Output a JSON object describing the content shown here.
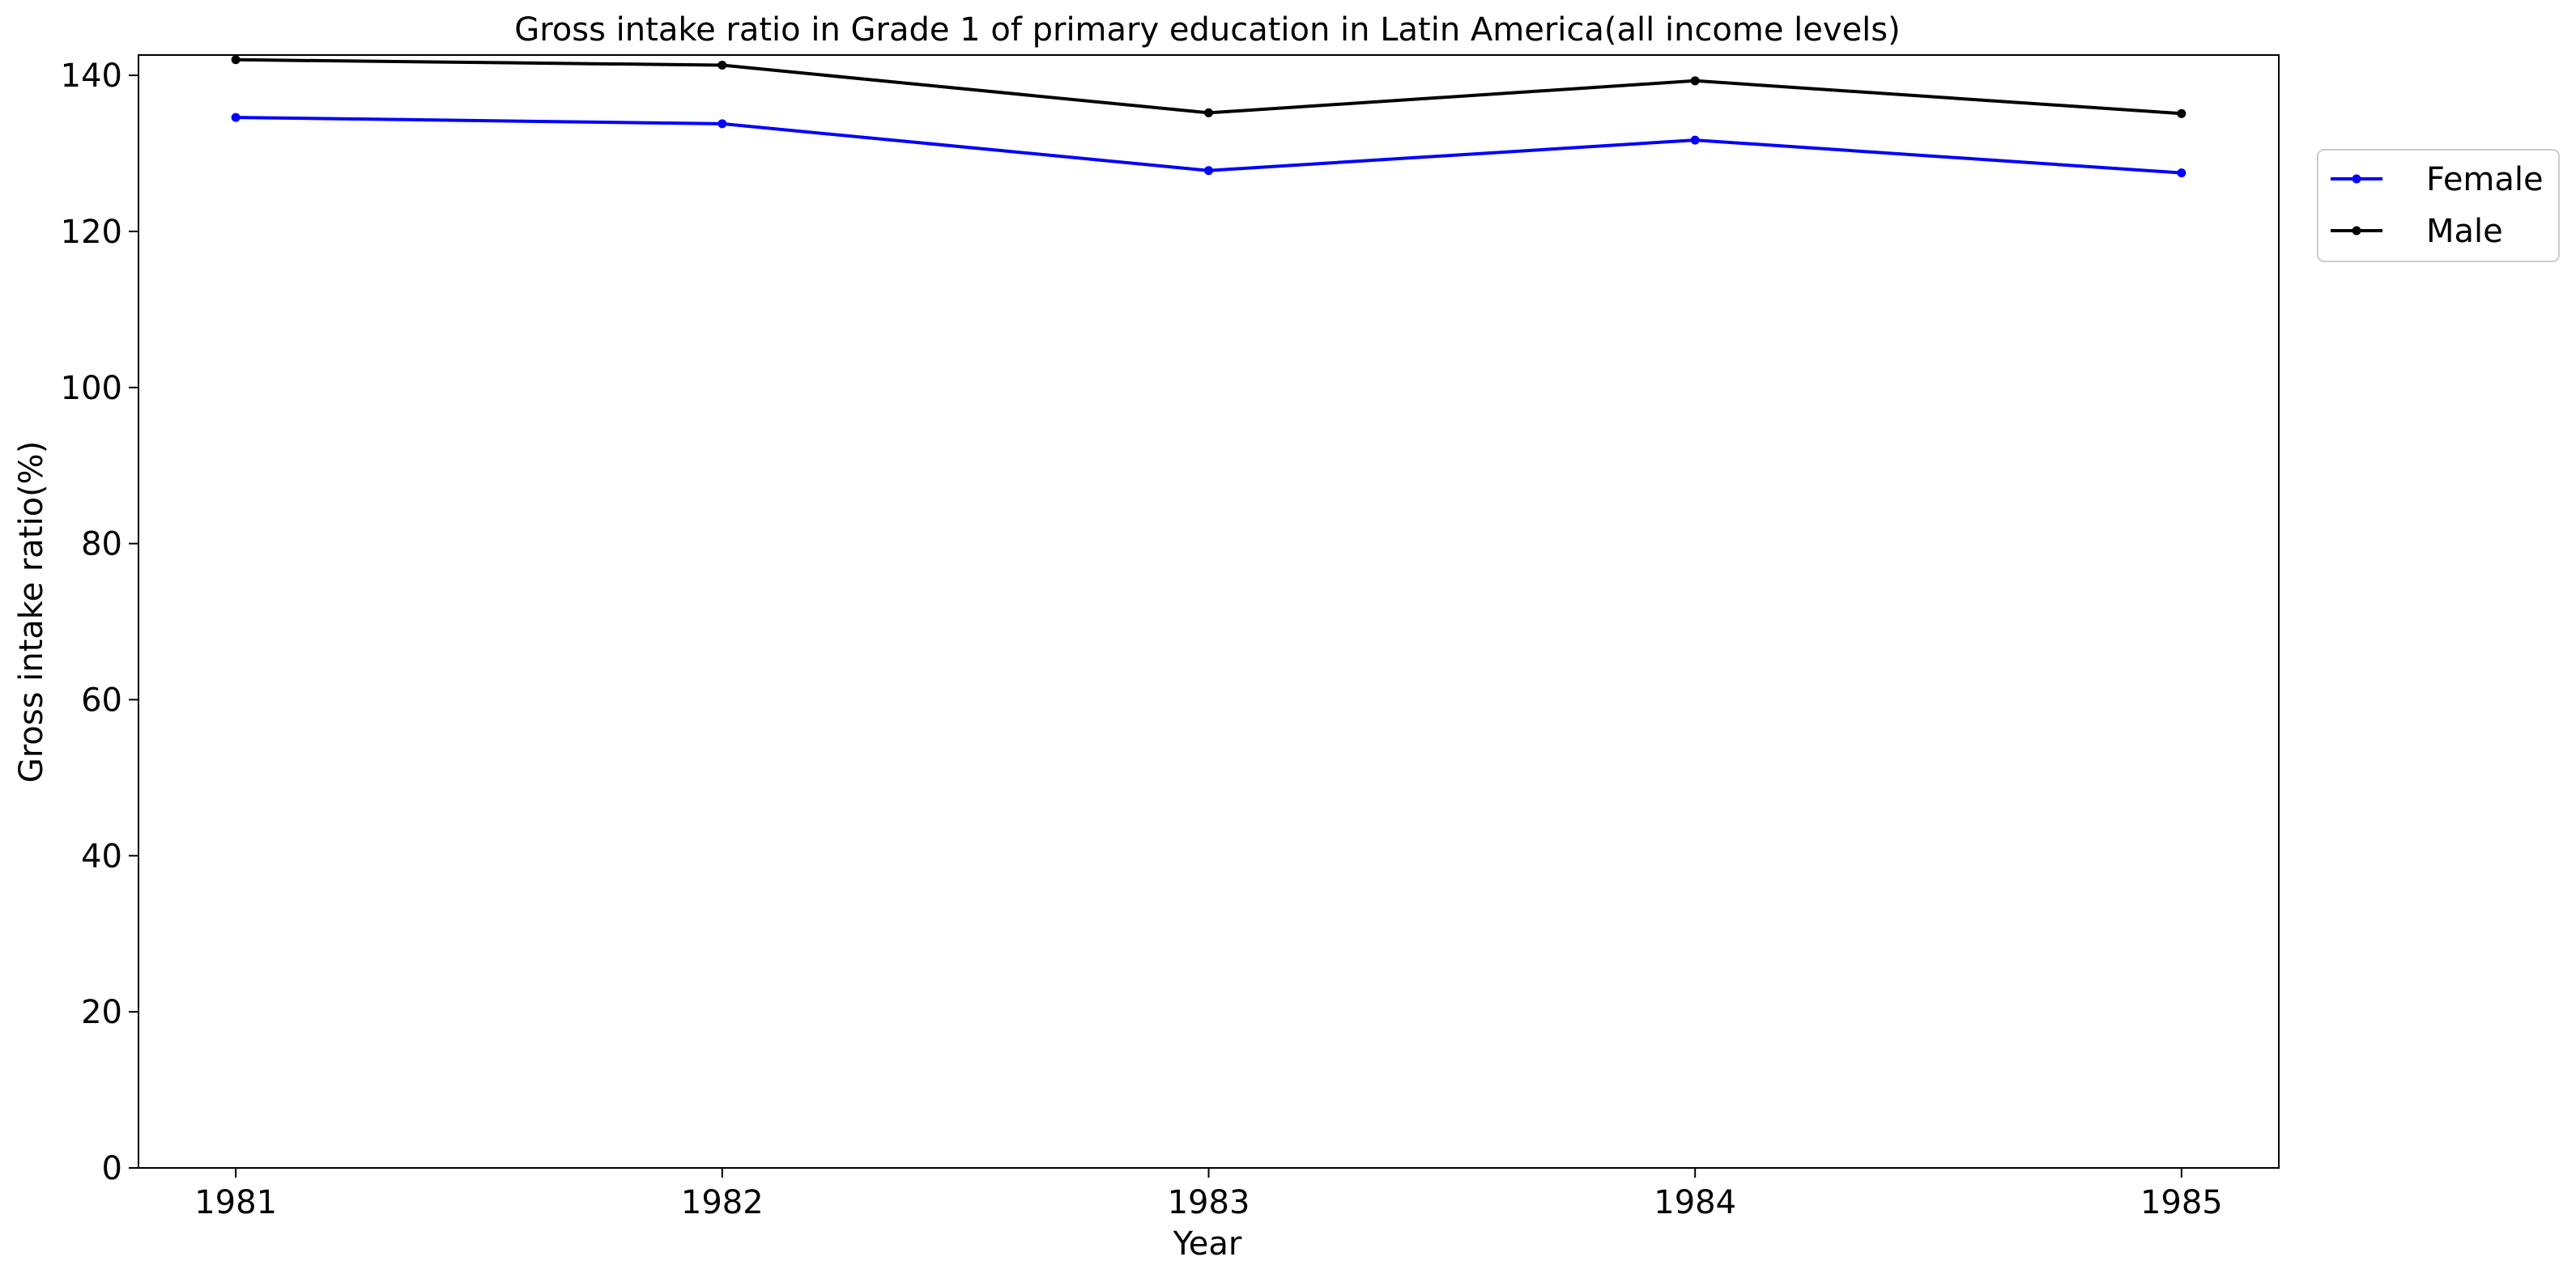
{
  "chart_data": {
    "type": "line",
    "title": "Gross intake ratio in Grade 1 of primary education in Latin America(all income levels)",
    "xlabel": "Year",
    "ylabel": "Gross intake ratio(%)",
    "x": [
      1981,
      1982,
      1983,
      1984,
      1985
    ],
    "x_tick_labels": [
      "1981",
      "1982",
      "1983",
      "1984",
      "1985"
    ],
    "xlim": [
      1980.8,
      1985.2
    ],
    "ylim": [
      0,
      142.6
    ],
    "y_ticks": [
      0,
      20,
      40,
      60,
      80,
      100,
      120,
      140
    ],
    "y_tick_labels": [
      "0",
      "20",
      "40",
      "60",
      "80",
      "100",
      "120",
      "140"
    ],
    "grid": false,
    "legend_position": "outside-top-right",
    "series": [
      {
        "name": "Female",
        "color": "#0000ff",
        "values": [
          134.6,
          133.8,
          127.8,
          131.7,
          127.5
        ]
      },
      {
        "name": "Male",
        "color": "#000000",
        "values": [
          142.0,
          141.3,
          135.2,
          139.3,
          135.1
        ]
      }
    ]
  }
}
